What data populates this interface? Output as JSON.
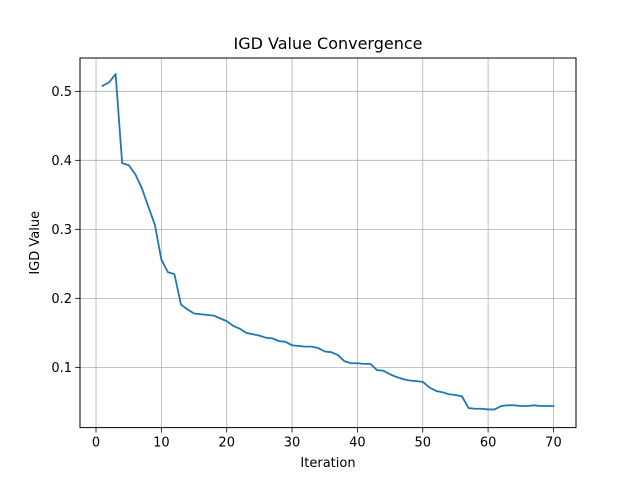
{
  "chart_data": {
    "type": "line",
    "title": "IGD Value Convergence",
    "xlabel": "Iteration",
    "ylabel": "IGD Value",
    "xlim": [
      -2.45,
      73.45
    ],
    "ylim": [
      0.0127,
      0.5483
    ],
    "xticks": [
      0,
      10,
      20,
      30,
      40,
      50,
      60,
      70
    ],
    "yticks": [
      0.1,
      0.2,
      0.3,
      0.4,
      0.5
    ],
    "grid": true,
    "legend": "none",
    "series": [
      {
        "color": "#1f77b4",
        "x": [
          1,
          2,
          3,
          4,
          5,
          6,
          7,
          8,
          9,
          10,
          11,
          12,
          13,
          14,
          15,
          16,
          17,
          18,
          19,
          20,
          21,
          22,
          23,
          24,
          25,
          26,
          27,
          28,
          29,
          30,
          31,
          32,
          33,
          34,
          35,
          36,
          37,
          38,
          39,
          40,
          41,
          42,
          43,
          44,
          45,
          46,
          47,
          48,
          49,
          50,
          51,
          52,
          53,
          54,
          55,
          56,
          57,
          58,
          59,
          60,
          61,
          62,
          63,
          64,
          65,
          66,
          67,
          68,
          69,
          70
        ],
        "values": [
          0.508,
          0.513,
          0.525,
          0.396,
          0.393,
          0.38,
          0.36,
          0.333,
          0.307,
          0.256,
          0.238,
          0.235,
          0.191,
          0.184,
          0.178,
          0.177,
          0.176,
          0.175,
          0.171,
          0.167,
          0.16,
          0.156,
          0.15,
          0.148,
          0.146,
          0.143,
          0.142,
          0.138,
          0.137,
          0.132,
          0.131,
          0.13,
          0.13,
          0.128,
          0.123,
          0.122,
          0.118,
          0.109,
          0.106,
          0.106,
          0.105,
          0.105,
          0.096,
          0.095,
          0.09,
          0.086,
          0.083,
          0.081,
          0.08,
          0.079,
          0.071,
          0.066,
          0.064,
          0.061,
          0.06,
          0.058,
          0.041,
          0.04,
          0.04,
          0.039,
          0.039,
          0.044,
          0.045,
          0.045,
          0.044,
          0.044,
          0.045,
          0.044,
          0.044,
          0.044
        ]
      }
    ]
  }
}
